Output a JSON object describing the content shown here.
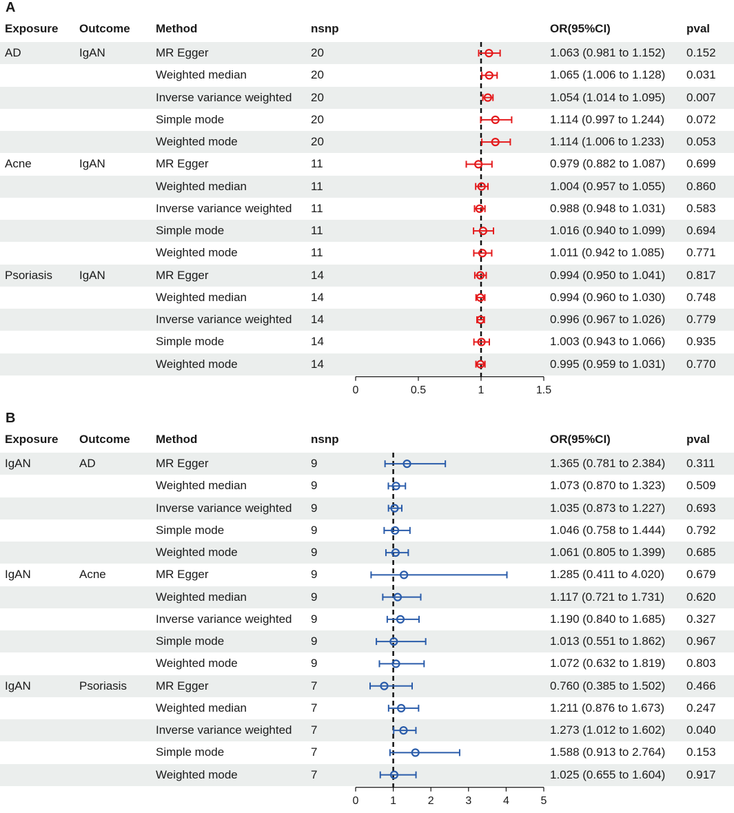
{
  "chart_data": [
    {
      "type": "forest",
      "panel_label": "A",
      "headers": {
        "exposure": "Exposure",
        "outcome": "Outcome",
        "method": "Method",
        "nsnp": "nsnp",
        "or": "OR(95%CI)",
        "pval": "pval"
      },
      "xlim": [
        0,
        1.5
      ],
      "ticks": [
        0,
        0.5,
        1,
        1.5
      ],
      "tick_labels": [
        "0",
        "0.5",
        "1",
        "1.5"
      ],
      "reference_line": 1,
      "color": "#e41a1c",
      "rows": [
        {
          "exposure": "AD",
          "outcome": "IgAN",
          "method": "MR Egger",
          "nsnp": "20",
          "or": 1.063,
          "lo": 0.981,
          "hi": 1.152,
          "or_text": "1.063 (0.981 to 1.152)",
          "pval": "0.152"
        },
        {
          "exposure": "",
          "outcome": "",
          "method": "Weighted median",
          "nsnp": "20",
          "or": 1.065,
          "lo": 1.006,
          "hi": 1.128,
          "or_text": "1.065 (1.006 to 1.128)",
          "pval": "0.031"
        },
        {
          "exposure": "",
          "outcome": "",
          "method": "Inverse variance weighted",
          "nsnp": "20",
          "or": 1.054,
          "lo": 1.014,
          "hi": 1.095,
          "or_text": "1.054 (1.014 to 1.095)",
          "pval": "0.007"
        },
        {
          "exposure": "",
          "outcome": "",
          "method": "Simple mode",
          "nsnp": "20",
          "or": 1.114,
          "lo": 0.997,
          "hi": 1.244,
          "or_text": "1.114 (0.997 to 1.244)",
          "pval": "0.072"
        },
        {
          "exposure": "",
          "outcome": "",
          "method": "Weighted mode",
          "nsnp": "20",
          "or": 1.114,
          "lo": 1.006,
          "hi": 1.233,
          "or_text": "1.114 (1.006 to 1.233)",
          "pval": "0.053"
        },
        {
          "exposure": "Acne",
          "outcome": "IgAN",
          "method": "MR Egger",
          "nsnp": "11",
          "or": 0.979,
          "lo": 0.882,
          "hi": 1.087,
          "or_text": "0.979 (0.882 to 1.087)",
          "pval": "0.699"
        },
        {
          "exposure": "",
          "outcome": "",
          "method": "Weighted median",
          "nsnp": "11",
          "or": 1.004,
          "lo": 0.957,
          "hi": 1.055,
          "or_text": "1.004 (0.957 to 1.055)",
          "pval": "0.860"
        },
        {
          "exposure": "",
          "outcome": "",
          "method": "Inverse variance weighted",
          "nsnp": "11",
          "or": 0.988,
          "lo": 0.948,
          "hi": 1.031,
          "or_text": "0.988 (0.948 to 1.031)",
          "pval": "0.583"
        },
        {
          "exposure": "",
          "outcome": "",
          "method": "Simple mode",
          "nsnp": "11",
          "or": 1.016,
          "lo": 0.94,
          "hi": 1.099,
          "or_text": "1.016 (0.940 to 1.099)",
          "pval": "0.694"
        },
        {
          "exposure": "",
          "outcome": "",
          "method": "Weighted mode",
          "nsnp": "11",
          "or": 1.011,
          "lo": 0.942,
          "hi": 1.085,
          "or_text": "1.011 (0.942 to 1.085)",
          "pval": "0.771"
        },
        {
          "exposure": "Psoriasis",
          "outcome": "IgAN",
          "method": "MR Egger",
          "nsnp": "14",
          "or": 0.994,
          "lo": 0.95,
          "hi": 1.041,
          "or_text": "0.994 (0.950 to 1.041)",
          "pval": "0.817"
        },
        {
          "exposure": "",
          "outcome": "",
          "method": "Weighted median",
          "nsnp": "14",
          "or": 0.994,
          "lo": 0.96,
          "hi": 1.03,
          "or_text": "0.994 (0.960 to 1.030)",
          "pval": "0.748"
        },
        {
          "exposure": "",
          "outcome": "",
          "method": "Inverse variance weighted",
          "nsnp": "14",
          "or": 0.996,
          "lo": 0.967,
          "hi": 1.026,
          "or_text": "0.996 (0.967 to 1.026)",
          "pval": "0.779"
        },
        {
          "exposure": "",
          "outcome": "",
          "method": "Simple mode",
          "nsnp": "14",
          "or": 1.003,
          "lo": 0.943,
          "hi": 1.066,
          "or_text": "1.003 (0.943 to 1.066)",
          "pval": "0.935"
        },
        {
          "exposure": "",
          "outcome": "",
          "method": "Weighted mode",
          "nsnp": "14",
          "or": 0.995,
          "lo": 0.959,
          "hi": 1.031,
          "or_text": "0.995 (0.959 to 1.031)",
          "pval": "0.770"
        }
      ]
    },
    {
      "type": "forest",
      "panel_label": "B",
      "headers": {
        "exposure": "Exposure",
        "outcome": "Outcome",
        "method": "Method",
        "nsnp": "nsnp",
        "or": "OR(95%CI)",
        "pval": "pval"
      },
      "xlim": [
        0,
        5
      ],
      "ticks": [
        0,
        1,
        2,
        3,
        4,
        5
      ],
      "tick_labels": [
        "0",
        "1",
        "2",
        "3",
        "4",
        "5"
      ],
      "reference_line": 1,
      "color": "#2a5caa",
      "rows": [
        {
          "exposure": "IgAN",
          "outcome": "AD",
          "method": "MR Egger",
          "nsnp": "9",
          "or": 1.365,
          "lo": 0.781,
          "hi": 2.384,
          "or_text": "1.365 (0.781 to 2.384)",
          "pval": "0.311"
        },
        {
          "exposure": "",
          "outcome": "",
          "method": "Weighted median",
          "nsnp": "9",
          "or": 1.073,
          "lo": 0.87,
          "hi": 1.323,
          "or_text": "1.073 (0.870 to 1.323)",
          "pval": "0.509"
        },
        {
          "exposure": "",
          "outcome": "",
          "method": "Inverse variance weighted",
          "nsnp": "9",
          "or": 1.035,
          "lo": 0.873,
          "hi": 1.227,
          "or_text": "1.035 (0.873 to 1.227)",
          "pval": "0.693"
        },
        {
          "exposure": "",
          "outcome": "",
          "method": "Simple mode",
          "nsnp": "9",
          "or": 1.046,
          "lo": 0.758,
          "hi": 1.444,
          "or_text": "1.046 (0.758 to 1.444)",
          "pval": "0.792"
        },
        {
          "exposure": "",
          "outcome": "",
          "method": "Weighted mode",
          "nsnp": "9",
          "or": 1.061,
          "lo": 0.805,
          "hi": 1.399,
          "or_text": "1.061 (0.805 to 1.399)",
          "pval": "0.685"
        },
        {
          "exposure": "IgAN",
          "outcome": "Acne",
          "method": "MR Egger",
          "nsnp": "9",
          "or": 1.285,
          "lo": 0.411,
          "hi": 4.02,
          "or_text": "1.285 (0.411 to 4.020)",
          "pval": "0.679"
        },
        {
          "exposure": "",
          "outcome": "",
          "method": "Weighted median",
          "nsnp": "9",
          "or": 1.117,
          "lo": 0.721,
          "hi": 1.731,
          "or_text": "1.117 (0.721 to 1.731)",
          "pval": "0.620"
        },
        {
          "exposure": "",
          "outcome": "",
          "method": "Inverse variance weighted",
          "nsnp": "9",
          "or": 1.19,
          "lo": 0.84,
          "hi": 1.685,
          "or_text": "1.190 (0.840 to 1.685)",
          "pval": "0.327"
        },
        {
          "exposure": "",
          "outcome": "",
          "method": "Simple mode",
          "nsnp": "9",
          "or": 1.013,
          "lo": 0.551,
          "hi": 1.862,
          "or_text": "1.013 (0.551 to 1.862)",
          "pval": "0.967"
        },
        {
          "exposure": "",
          "outcome": "",
          "method": "Weighted mode",
          "nsnp": "9",
          "or": 1.072,
          "lo": 0.632,
          "hi": 1.819,
          "or_text": "1.072 (0.632 to 1.819)",
          "pval": "0.803"
        },
        {
          "exposure": "IgAN",
          "outcome": "Psoriasis",
          "method": "MR Egger",
          "nsnp": "7",
          "or": 0.76,
          "lo": 0.385,
          "hi": 1.502,
          "or_text": "0.760 (0.385 to 1.502)",
          "pval": "0.466"
        },
        {
          "exposure": "",
          "outcome": "",
          "method": "Weighted median",
          "nsnp": "7",
          "or": 1.211,
          "lo": 0.876,
          "hi": 1.673,
          "or_text": "1.211 (0.876 to 1.673)",
          "pval": "0.247"
        },
        {
          "exposure": "",
          "outcome": "",
          "method": "Inverse variance weighted",
          "nsnp": "7",
          "or": 1.273,
          "lo": 1.012,
          "hi": 1.602,
          "or_text": "1.273 (1.012 to 1.602)",
          "pval": "0.040"
        },
        {
          "exposure": "",
          "outcome": "",
          "method": "Simple mode",
          "nsnp": "7",
          "or": 1.588,
          "lo": 0.913,
          "hi": 2.764,
          "or_text": "1.588 (0.913 to 2.764)",
          "pval": "0.153"
        },
        {
          "exposure": "",
          "outcome": "",
          "method": "Weighted mode",
          "nsnp": "7",
          "or": 1.025,
          "lo": 0.655,
          "hi": 1.604,
          "or_text": "1.025 (0.655 to 1.604)",
          "pval": "0.917"
        }
      ]
    }
  ]
}
